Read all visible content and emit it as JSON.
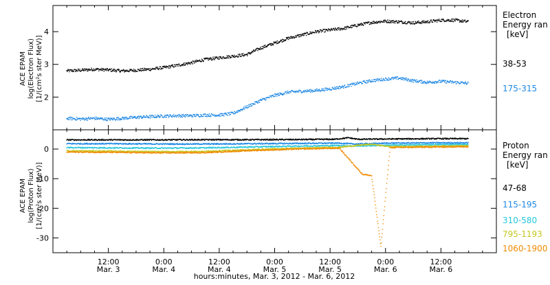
{
  "chart_data": [
    {
      "type": "scatter",
      "title": "",
      "ylabel_lines": [
        "ACE EPAM",
        "log(Electron Flux)",
        "[1/(cm²s ster MeV)]"
      ],
      "legend_title_lines": [
        "Electron",
        "Energy ran",
        "[keV]"
      ],
      "ylim": [
        1.0,
        4.8
      ],
      "yticks": [
        2,
        3,
        4
      ],
      "grid": false,
      "legend": "right",
      "series": [
        {
          "name": "38-53",
          "color": "#000000",
          "points": [
            [
              0,
              2.8
            ],
            [
              3,
              2.82
            ],
            [
              6,
              2.85
            ],
            [
              9,
              2.83
            ],
            [
              12,
              2.8
            ],
            [
              15,
              2.82
            ],
            [
              18,
              2.85
            ],
            [
              21,
              2.9
            ],
            [
              24,
              2.97
            ],
            [
              27,
              3.05
            ],
            [
              30,
              3.15
            ],
            [
              33,
              3.2
            ],
            [
              36,
              3.25
            ],
            [
              39,
              3.3
            ],
            [
              42,
              3.5
            ],
            [
              45,
              3.65
            ],
            [
              48,
              3.8
            ],
            [
              51,
              3.9
            ],
            [
              54,
              4.0
            ],
            [
              57,
              4.05
            ],
            [
              60,
              4.1
            ],
            [
              63,
              4.2
            ],
            [
              66,
              4.28
            ],
            [
              69,
              4.32
            ],
            [
              72,
              4.3
            ],
            [
              75,
              4.27
            ],
            [
              78,
              4.3
            ],
            [
              81,
              4.35
            ],
            [
              84,
              4.35
            ],
            [
              87,
              4.3
            ]
          ]
        },
        {
          "name": "175-315",
          "color": "#1e88e5",
          "points": [
            [
              0,
              1.35
            ],
            [
              3,
              1.33
            ],
            [
              6,
              1.35
            ],
            [
              9,
              1.32
            ],
            [
              12,
              1.35
            ],
            [
              15,
              1.38
            ],
            [
              18,
              1.4
            ],
            [
              21,
              1.42
            ],
            [
              24,
              1.43
            ],
            [
              27,
              1.43
            ],
            [
              30,
              1.45
            ],
            [
              33,
              1.45
            ],
            [
              36,
              1.5
            ],
            [
              39,
              1.7
            ],
            [
              42,
              1.9
            ],
            [
              45,
              2.05
            ],
            [
              48,
              2.15
            ],
            [
              51,
              2.18
            ],
            [
              54,
              2.2
            ],
            [
              57,
              2.25
            ],
            [
              60,
              2.32
            ],
            [
              63,
              2.42
            ],
            [
              66,
              2.5
            ],
            [
              69,
              2.55
            ],
            [
              72,
              2.58
            ],
            [
              75,
              2.5
            ],
            [
              78,
              2.45
            ],
            [
              81,
              2.48
            ],
            [
              84,
              2.45
            ],
            [
              87,
              2.42
            ]
          ]
        }
      ]
    },
    {
      "type": "scatter",
      "title": "",
      "ylabel_lines": [
        "ACE EPAM",
        "log(Proton Flux)",
        "[1/(cm²s ster MeV)]"
      ],
      "legend_title_lines": [
        "Proton",
        "Energy ran",
        "[keV]"
      ],
      "ylim": [
        -35,
        6.5
      ],
      "yticks": [
        0,
        -10,
        -20,
        -30
      ],
      "grid": false,
      "legend": "right",
      "series": [
        {
          "name": "47-68",
          "color": "#000000",
          "points": [
            [
              0,
              3.1
            ],
            [
              10,
              3.1
            ],
            [
              20,
              3.1
            ],
            [
              30,
              3.15
            ],
            [
              40,
              3.15
            ],
            [
              50,
              3.2
            ],
            [
              58,
              3.3
            ],
            [
              61,
              3.8
            ],
            [
              63,
              3.3
            ],
            [
              70,
              3.4
            ],
            [
              80,
              3.5
            ],
            [
              87,
              3.5
            ]
          ]
        },
        {
          "name": "115-195",
          "color": "#1e88e5",
          "points": [
            [
              0,
              1.8
            ],
            [
              10,
              1.8
            ],
            [
              20,
              1.7
            ],
            [
              30,
              1.7
            ],
            [
              40,
              1.8
            ],
            [
              50,
              1.9
            ],
            [
              59,
              2.0
            ],
            [
              62,
              1.7
            ],
            [
              70,
              2.0
            ],
            [
              80,
              2.1
            ],
            [
              87,
              2.1
            ]
          ]
        },
        {
          "name": "310-580",
          "color": "#26c6da",
          "points": [
            [
              0,
              0.5
            ],
            [
              10,
              0.4
            ],
            [
              20,
              0.3
            ],
            [
              30,
              0.4
            ],
            [
              40,
              0.7
            ],
            [
              50,
              1.0
            ],
            [
              59,
              1.2
            ],
            [
              62,
              1.0
            ],
            [
              70,
              1.3
            ],
            [
              80,
              1.5
            ],
            [
              87,
              1.5
            ]
          ]
        },
        {
          "name": "795-1193",
          "color": "#c6c620",
          "points": [
            [
              0,
              -0.6
            ],
            [
              10,
              -0.7
            ],
            [
              20,
              -0.9
            ],
            [
              30,
              -0.8
            ],
            [
              40,
              -0.2
            ],
            [
              50,
              0.3
            ],
            [
              59,
              0.6
            ],
            [
              64,
              1.4
            ],
            [
              66,
              1.6
            ],
            [
              70,
              0.8
            ],
            [
              80,
              1.0
            ],
            [
              87,
              1.1
            ]
          ]
        },
        {
          "name": "1060-1900",
          "color": "#f08a00",
          "points": [
            [
              0,
              -1.0
            ],
            [
              10,
              -1.1
            ],
            [
              20,
              -1.3
            ],
            [
              30,
              -1.2
            ],
            [
              40,
              -0.5
            ],
            [
              50,
              0.0
            ],
            [
              59,
              0.3
            ],
            [
              64,
              -8.5
            ],
            [
              66,
              -9.0
            ],
            [
              68,
              -33.0
            ],
            [
              70,
              0.5
            ],
            [
              80,
              0.7
            ],
            [
              87,
              0.8
            ]
          ]
        }
      ]
    }
  ],
  "x_axis": {
    "range_hours": [
      -3,
      93
    ],
    "ticks": [
      {
        "hour": 9,
        "line1": "12:00",
        "line2": "Mar. 3"
      },
      {
        "hour": 21,
        "line1": "0:00",
        "line2": "Mar. 4"
      },
      {
        "hour": 33,
        "line1": "12:00",
        "line2": "Mar. 4"
      },
      {
        "hour": 45,
        "line1": "0:00",
        "line2": "Mar. 5"
      },
      {
        "hour": 57,
        "line1": "12:00",
        "line2": "Mar. 5"
      },
      {
        "hour": 69,
        "line1": "0:00",
        "line2": "Mar. 6"
      },
      {
        "hour": 81,
        "line1": "12:00",
        "line2": "Mar. 6"
      }
    ],
    "label": "hours:minutes, Mar.  3, 2012 - Mar.  6, 2012"
  }
}
